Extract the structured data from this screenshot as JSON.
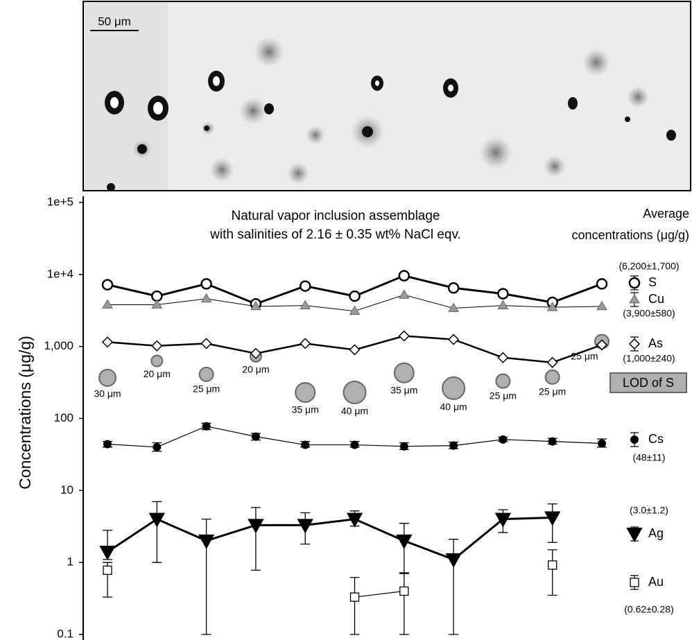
{
  "micrograph": {
    "scale_bar": "50 μm"
  },
  "chart_data": {
    "type": "line",
    "title": [
      "Natural vapor inclusion assemblage",
      "with salinities of 2.16 ± 0.35 wt% NaCl eqv."
    ],
    "legend_title": [
      "Average",
      "concentrations (μg/g)"
    ],
    "y_label": "Concentrations (μg/g)",
    "log_scale": true,
    "ylim": [
      0.1,
      100000
    ],
    "yticks": [
      {
        "value": 100000,
        "label": "1e+5"
      },
      {
        "value": 10000,
        "label": "1e+4"
      },
      {
        "value": 1000,
        "label": "1,000"
      },
      100,
      10,
      1,
      0.1
    ],
    "categories": [
      null,
      null,
      null,
      null,
      null,
      null,
      null,
      null,
      null,
      null,
      null
    ],
    "series": [
      {
        "name": "S",
        "average_label": "(6,200±1,700)",
        "color": "#000000",
        "marker": "circle-open",
        "values": [
          7200,
          5000,
          7400,
          3900,
          6900,
          5000,
          9600,
          6500,
          5400,
          4100,
          7400
        ]
      },
      {
        "name": "Cu",
        "average_label": "(3,900±580)",
        "color": "#9a9a9a",
        "marker": "triangle",
        "values": [
          3800,
          3800,
          4600,
          3600,
          3700,
          3100,
          5200,
          3400,
          3700,
          3500,
          3600
        ]
      },
      {
        "name": "As",
        "average_label": "(1,000±240)",
        "color": "#000000",
        "marker": "diamond-open",
        "values": [
          1150,
          1020,
          1100,
          800,
          1100,
          900,
          1400,
          1250,
          700,
          600,
          1050
        ]
      },
      {
        "name": "Cs",
        "average_label": "(48±11)",
        "color": "#000000",
        "marker": "circle",
        "values": [
          44,
          40,
          78,
          56,
          43,
          43,
          41,
          42,
          51,
          48,
          45
        ],
        "upper": [
          48,
          46,
          86,
          62,
          48,
          48,
          46,
          47,
          55,
          53,
          52
        ],
        "lower": [
          40,
          35,
          70,
          50,
          40,
          40,
          37,
          38,
          48,
          44,
          40
        ]
      },
      {
        "name": "Ag",
        "average_label": "(3.0±1.2)",
        "color": "#000000",
        "marker": "triangle-down",
        "values": [
          1.4,
          4,
          2,
          3.3,
          3.3,
          4,
          2,
          1.1,
          4,
          4.2,
          null
        ],
        "upper": [
          2.8,
          7,
          4,
          5.8,
          4.9,
          5.2,
          3.5,
          2.1,
          5.4,
          6.5,
          null
        ],
        "lower": [
          1.1,
          1,
          0.1,
          0.78,
          1.8,
          3.2,
          0.7,
          0.1,
          2.6,
          1.9,
          null
        ]
      },
      {
        "name": "Au",
        "average_label": "(0.62±0.28)",
        "color": "#000000",
        "marker": "square-open",
        "values": [
          0.78,
          null,
          null,
          null,
          null,
          0.33,
          0.4,
          null,
          null,
          0.92,
          null
        ],
        "upper": [
          1.0,
          null,
          null,
          null,
          null,
          0.62,
          0.72,
          null,
          null,
          1.5,
          null
        ],
        "lower": [
          0.33,
          null,
          null,
          null,
          null,
          0.1,
          0.1,
          null,
          null,
          0.35,
          null
        ]
      }
    ],
    "lod": {
      "name": "LOD of S",
      "color": "#b0b0b0",
      "values": [
        367,
        630,
        410,
        730,
        230,
        230,
        430,
        263,
        330,
        375,
        1170
      ],
      "sizes": [
        30,
        20,
        25,
        20,
        35,
        40,
        35,
        40,
        25,
        25,
        25
      ],
      "size_labels": [
        "30 μm",
        "20 μm",
        "25 μm",
        "20 μm",
        "35 μm",
        "40 μm",
        "35 μm",
        "40 μm",
        "25 μm",
        "25 μm",
        "25 μm"
      ]
    }
  }
}
